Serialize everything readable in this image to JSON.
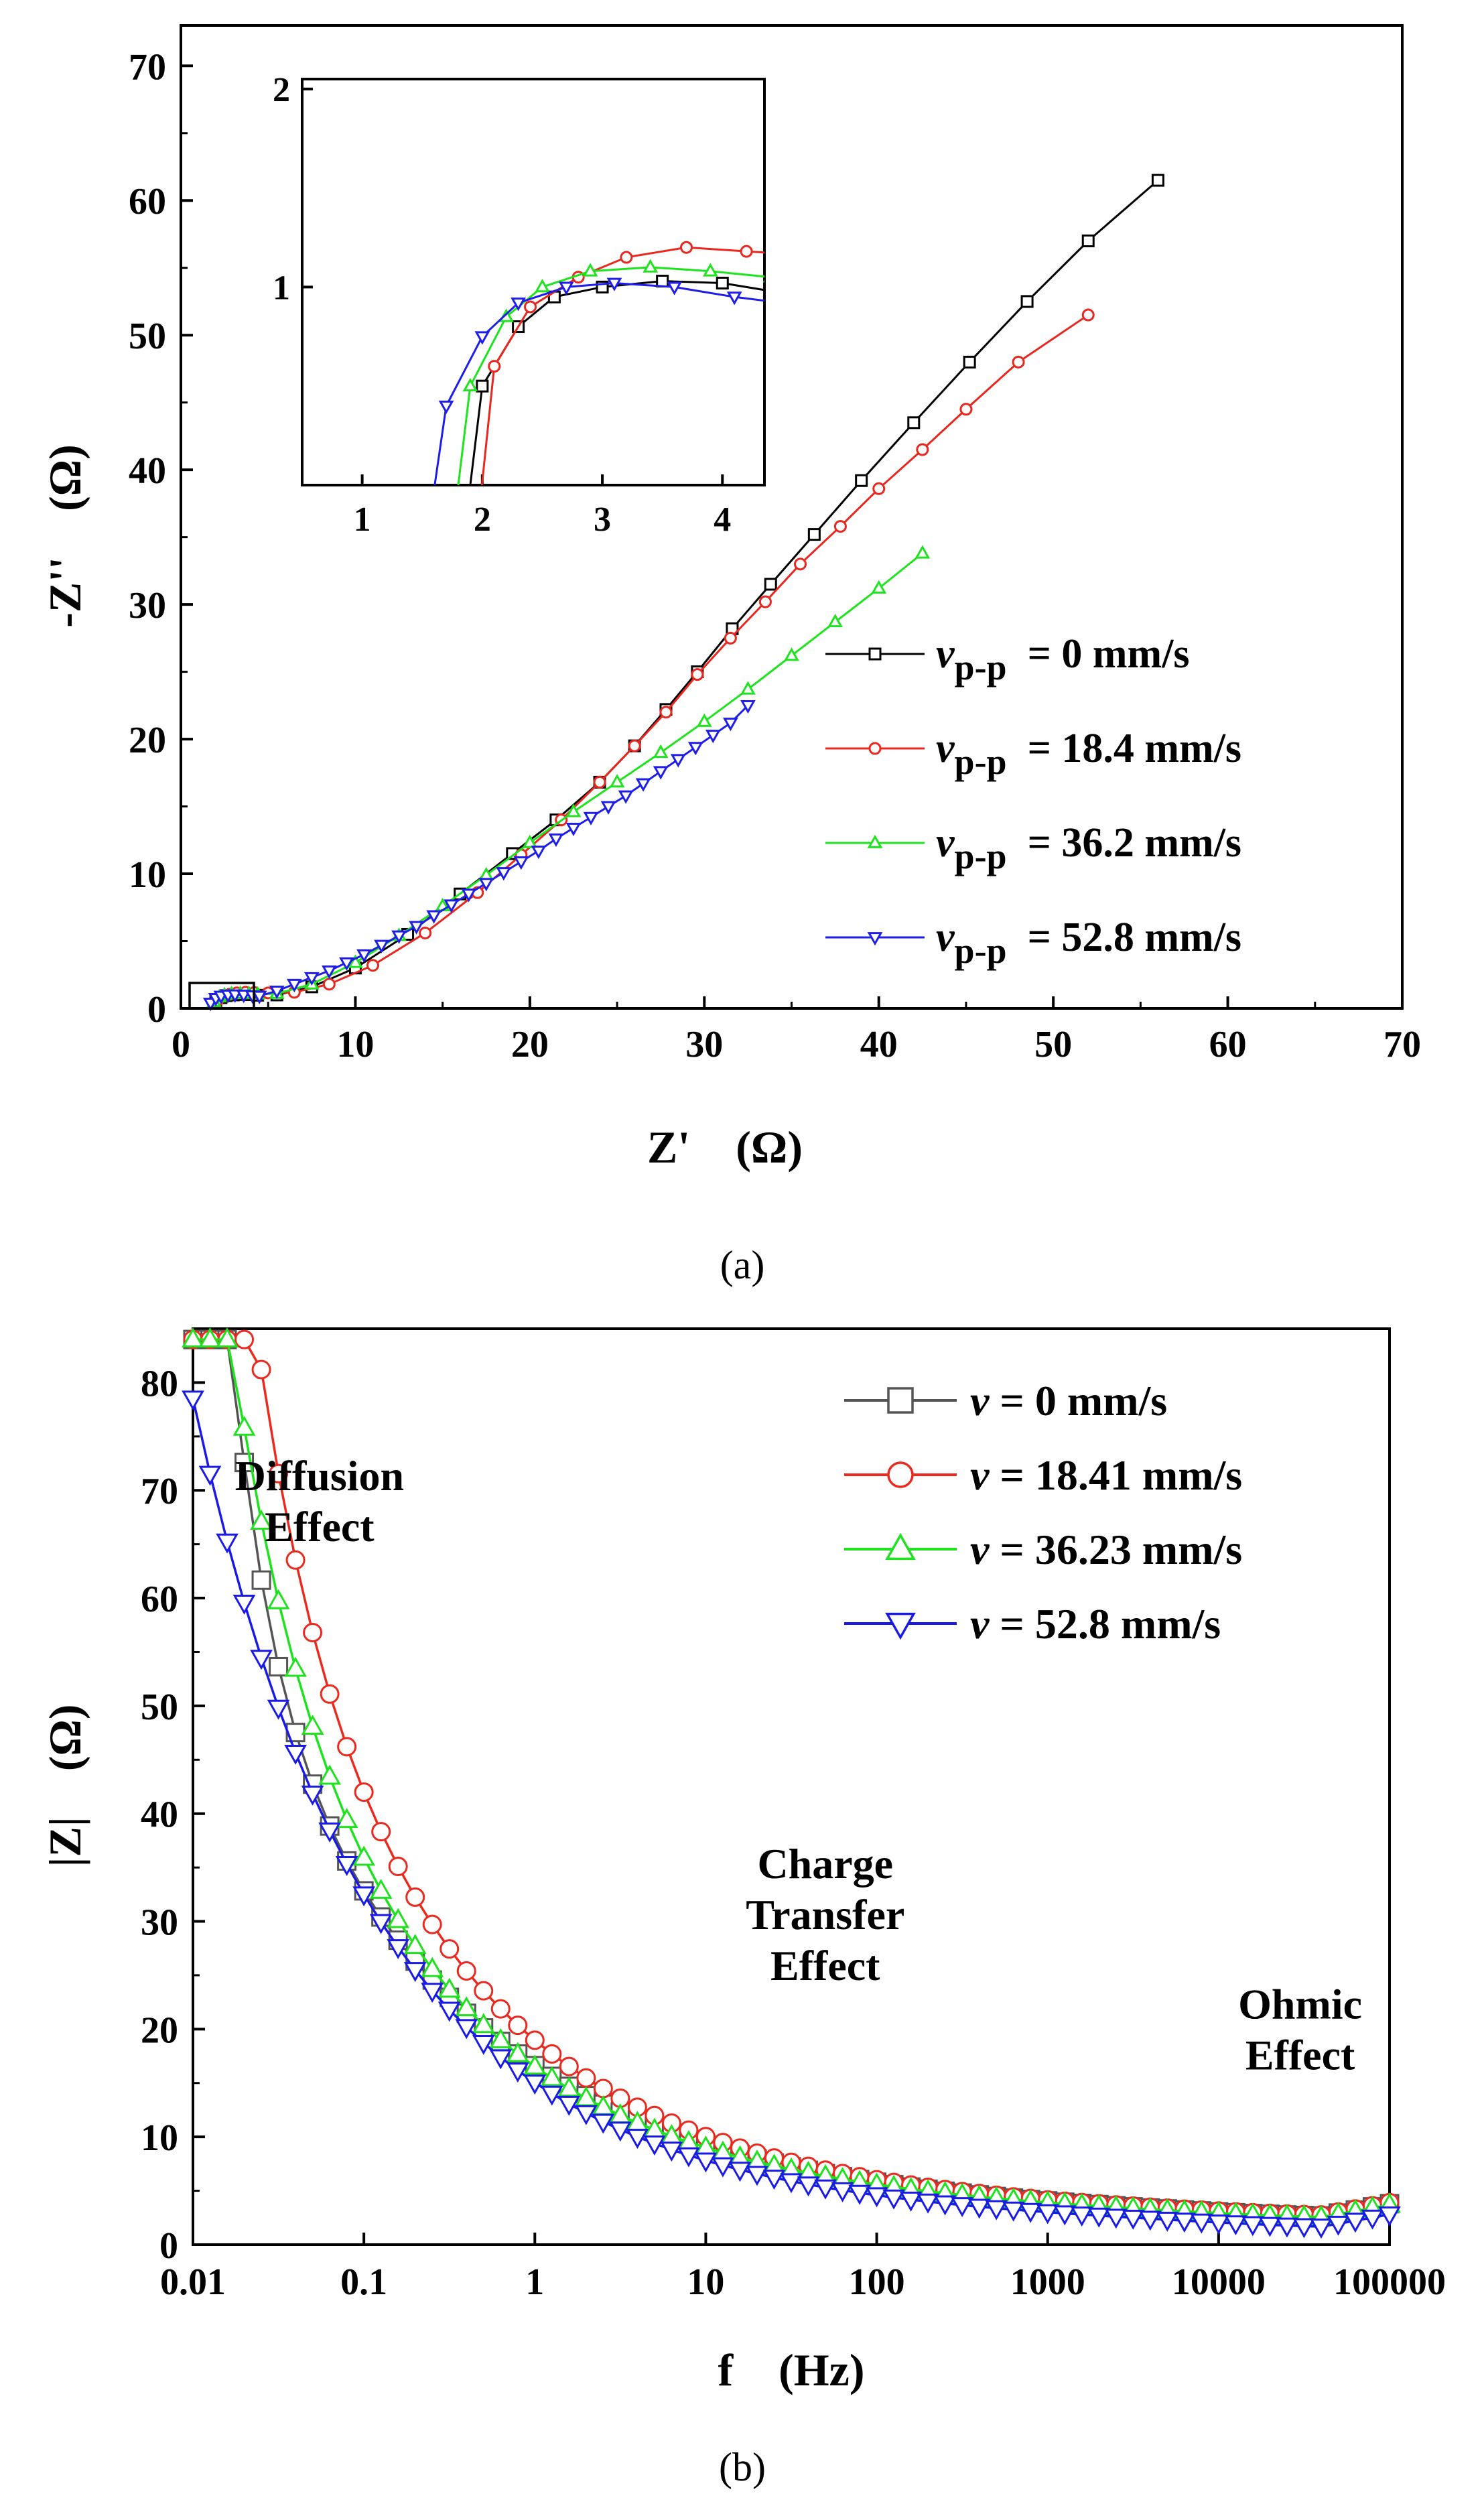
{
  "figure": {
    "caption_a": "(a)",
    "caption_b": "(b)"
  },
  "chart_data": [
    {
      "id": "a",
      "type": "line",
      "xlabel": "Z'　(Ω)",
      "ylabel": "-Z''　(Ω)",
      "xlim": [
        0,
        70
      ],
      "ylim": [
        0,
        73
      ],
      "x_ticks": [
        0,
        10,
        20,
        30,
        40,
        50,
        60,
        70
      ],
      "y_ticks": [
        0,
        10,
        20,
        30,
        40,
        50,
        60,
        70
      ],
      "grid": false,
      "legend_position": "right-center",
      "series": [
        {
          "name_prefix": "v",
          "name_sub": "p-p",
          "name_rest": " = 0 mm/s",
          "color": "#000000",
          "marker": "square",
          "x": [
            2.0,
            2.3,
            2.6,
            3.0,
            3.5,
            4.0,
            4.4,
            5.5,
            7.5,
            10.0,
            13.0,
            16.0,
            19.0,
            21.5,
            24.0,
            26.0,
            27.8,
            29.6,
            31.6,
            33.8,
            36.3,
            39.0,
            42.0,
            45.2,
            48.5,
            52.0,
            56.0
          ],
          "y": [
            0.5,
            0.8,
            0.95,
            1.0,
            1.03,
            1.02,
            0.98,
            1.0,
            1.6,
            3.0,
            5.5,
            8.5,
            11.5,
            14.0,
            16.8,
            19.5,
            22.2,
            25.0,
            28.2,
            31.5,
            35.2,
            39.2,
            43.5,
            48.0,
            52.5,
            57.0,
            61.5
          ]
        },
        {
          "name_prefix": "v",
          "name_sub": "p-p",
          "name_rest": " = 18.4 mm/s",
          "color": "#e8271f",
          "marker": "circle",
          "x": [
            2.1,
            2.4,
            2.8,
            3.2,
            3.7,
            4.2,
            5.0,
            6.5,
            8.5,
            11.0,
            14.0,
            17.0,
            19.5,
            21.8,
            24.0,
            26.0,
            27.8,
            29.6,
            31.5,
            33.5,
            35.5,
            37.8,
            40.0,
            42.5,
            45.0,
            48.0,
            52.0
          ],
          "y": [
            0.6,
            0.9,
            1.05,
            1.15,
            1.2,
            1.18,
            1.15,
            1.2,
            1.8,
            3.2,
            5.6,
            8.6,
            11.4,
            14.0,
            16.8,
            19.5,
            22.0,
            24.8,
            27.5,
            30.2,
            33.0,
            35.8,
            38.6,
            41.5,
            44.5,
            48.0,
            51.5
          ]
        },
        {
          "name_prefix": "v",
          "name_sub": "p-p",
          "name_rest": " = 36.2 mm/s",
          "color": "#1fe31f",
          "marker": "triangle-up",
          "x": [
            1.9,
            2.2,
            2.5,
            2.9,
            3.4,
            3.9,
            4.4,
            5.5,
            7.5,
            10.0,
            12.5,
            15.0,
            17.5,
            20.0,
            22.5,
            25.0,
            27.5,
            30.0,
            32.5,
            35.0,
            37.5,
            40.0,
            42.5
          ],
          "y": [
            0.5,
            0.85,
            1.0,
            1.08,
            1.1,
            1.08,
            1.05,
            1.1,
            1.8,
            3.4,
            5.4,
            7.6,
            9.9,
            12.3,
            14.6,
            16.8,
            19.0,
            21.3,
            23.7,
            26.2,
            28.7,
            31.2,
            33.8
          ]
        },
        {
          "name_prefix": "v",
          "name_sub": "p-p",
          "name_rest": " = 52.8 mm/s",
          "color": "#1e1ee8",
          "marker": "triangle-down",
          "x": [
            1.7,
            2.0,
            2.3,
            2.7,
            3.1,
            3.6,
            4.1,
            4.5,
            5.5,
            6.5,
            7.5,
            8.5,
            9.5,
            10.5,
            11.5,
            12.5,
            13.5,
            14.5,
            15.5,
            16.5,
            17.5,
            18.5,
            19.5,
            20.5,
            21.5,
            22.5,
            23.5,
            24.5,
            25.5,
            26.5,
            27.5,
            28.5,
            29.5,
            30.5,
            31.5,
            32.5
          ],
          "y": [
            0.4,
            0.75,
            0.92,
            1.0,
            1.02,
            1.0,
            0.95,
            0.92,
            1.3,
            1.8,
            2.3,
            2.8,
            3.4,
            4.0,
            4.7,
            5.4,
            6.1,
            6.9,
            7.7,
            8.5,
            9.3,
            10.1,
            10.9,
            11.7,
            12.6,
            13.4,
            14.2,
            15.0,
            15.8,
            16.7,
            17.6,
            18.5,
            19.4,
            20.3,
            21.2,
            22.5
          ]
        }
      ],
      "inset": {
        "xlim": [
          0.5,
          4.35
        ],
        "ylim": [
          0,
          2.05
        ],
        "x_ticks": [
          1,
          2,
          3,
          4
        ],
        "y_ticks": [
          1,
          2
        ]
      }
    },
    {
      "id": "b",
      "type": "line",
      "xlabel": "f　(Hz)",
      "ylabel": "|Z|　(Ω)",
      "x_scale": "log",
      "xlim": [
        0.01,
        100000
      ],
      "ylim": [
        0,
        85
      ],
      "x_ticks": [
        "0.01",
        "0.1",
        "1",
        "10",
        "100",
        "1000",
        "10000",
        "100000"
      ],
      "y_ticks": [
        0,
        10,
        20,
        30,
        40,
        50,
        60,
        70,
        80
      ],
      "grid": false,
      "legend_position": "top-right",
      "annotations": [
        {
          "lines": [
            "Diffusion",
            "Effect"
          ],
          "at_x": 0.055,
          "at_y": 70
        },
        {
          "lines": [
            "Charge",
            "Transfer",
            "Effect"
          ],
          "at_x": 50,
          "at_y": 34
        },
        {
          "lines": [
            "Ohmic",
            "Effect"
          ],
          "at_x": 30000,
          "at_y": 21
        }
      ],
      "series": [
        {
          "name_prefix": "v",
          "name_rest": " = 0 mm/s",
          "color": "#555555",
          "marker": "square",
          "params": {
            "r0": 2.6,
            "A": 78.0,
            "alpha": 1.9,
            "B": 14.0,
            "beta": 0.32
          }
        },
        {
          "name_prefix": "v",
          "name_rest": " = 18.41 mm/s",
          "color": "#ea2a1e",
          "marker": "circle",
          "params": {
            "r0": 2.7,
            "A": 68.0,
            "alpha": 1.2,
            "B": 16.0,
            "beta": 0.34
          }
        },
        {
          "name_prefix": "v",
          "name_rest": " = 36.23 mm/s",
          "color": "#1ee21e",
          "marker": "triangle-up",
          "params": {
            "r0": 2.5,
            "A": 52.0,
            "alpha": 1.0,
            "B": 13.5,
            "beta": 0.32
          }
        },
        {
          "name_prefix": "v",
          "name_rest": " = 52.8 mm/s",
          "color": "#1a1ae6",
          "marker": "triangle-down",
          "params": {
            "r0": 1.6,
            "A": 37.0,
            "alpha": 0.55,
            "B": 10.5,
            "beta": 0.29
          }
        }
      ]
    }
  ]
}
